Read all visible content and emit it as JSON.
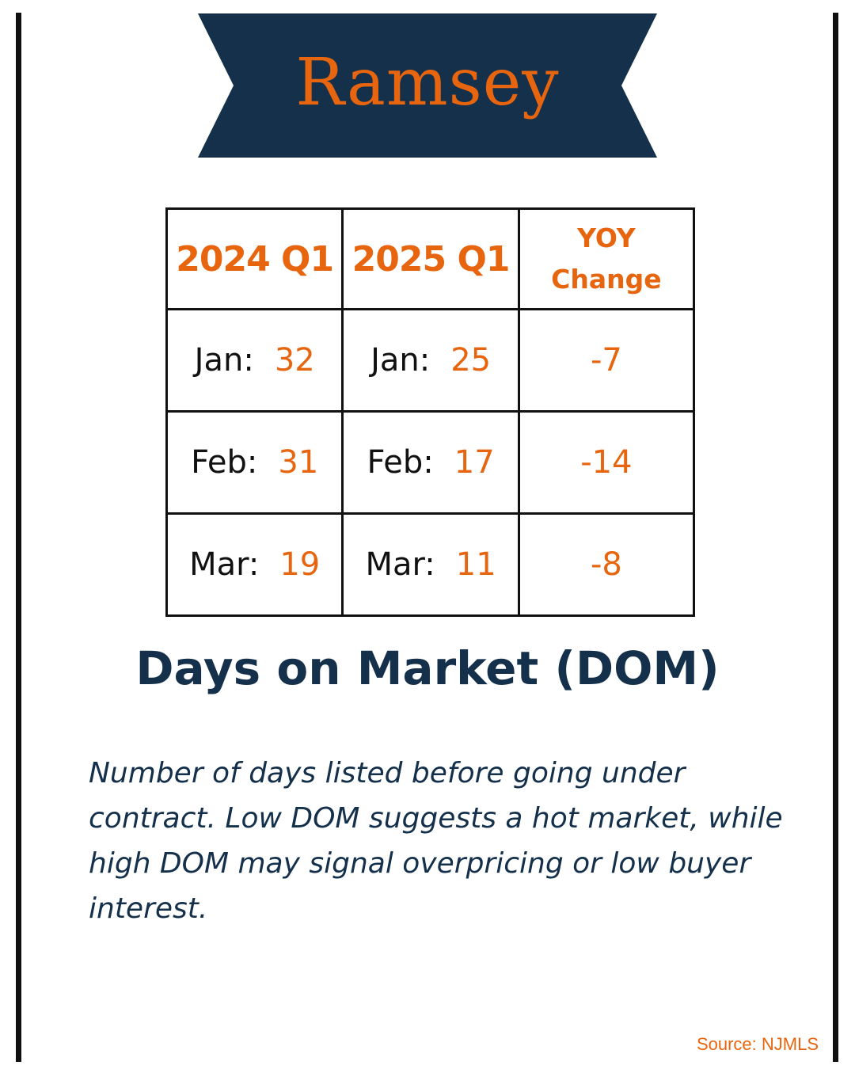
{
  "banner": {
    "title": "Ramsey",
    "color": "#14304a"
  },
  "table": {
    "headers": [
      "2024 Q1",
      "2025 Q1"
    ],
    "yoy_header_line1": "YOY",
    "yoy_header_line2": "Change",
    "rows": [
      {
        "m2024": "Jan:",
        "v2024": "32",
        "m2025": "Jan:",
        "v2025": "25",
        "change": "-7"
      },
      {
        "m2024": "Feb:",
        "v2024": "31",
        "m2025": "Feb:",
        "v2025": "17",
        "change": "-14"
      },
      {
        "m2024": "Mar:",
        "v2024": "19",
        "m2025": "Mar:",
        "v2025": "11",
        "change": "-8"
      }
    ]
  },
  "heading": "Days on Market (DOM)",
  "description": "Number of days listed before going under contract. Low DOM suggests a hot market, while high DOM may signal overpricing or low buyer interest.",
  "source": "Source: NJMLS",
  "colors": {
    "accent": "#e8650f",
    "navy": "#14304a"
  }
}
